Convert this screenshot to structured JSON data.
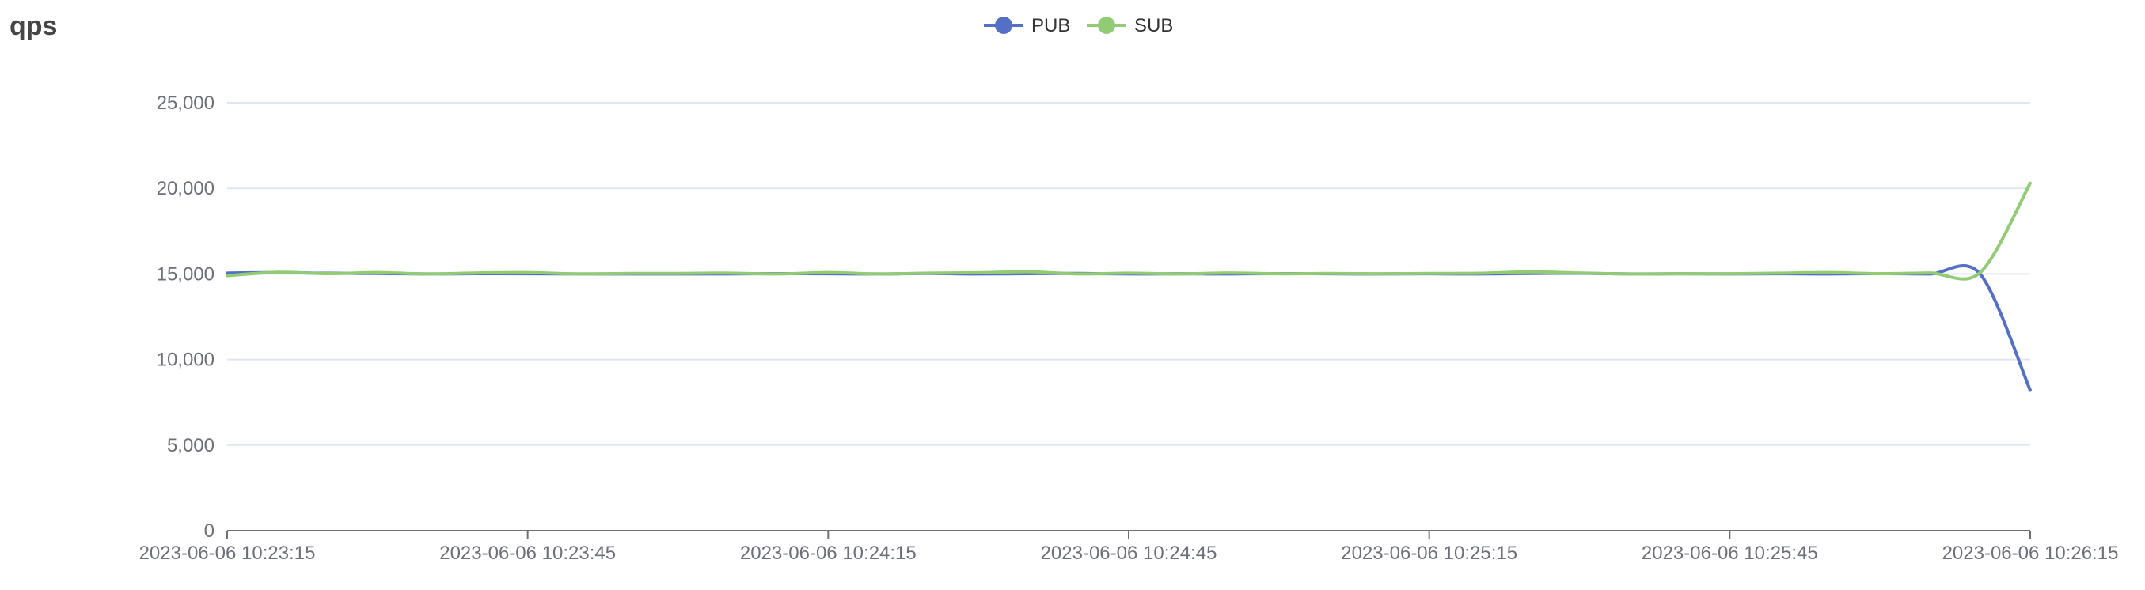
{
  "chart_data": {
    "type": "line",
    "title": "qps",
    "xlabel": "",
    "ylabel": "",
    "ylim": [
      0,
      25000
    ],
    "y_ticks": [
      0,
      5000,
      10000,
      15000,
      20000,
      25000
    ],
    "y_tick_labels": [
      "0",
      "5,000",
      "10,000",
      "15,000",
      "20,000",
      "25,000"
    ],
    "x_range": [
      "2023-06-06 10:23:15",
      "2023-06-06 10:26:15"
    ],
    "x_tick_labels": [
      "2023-06-06 10:23:15",
      "2023-06-06 10:23:45",
      "2023-06-06 10:24:15",
      "2023-06-06 10:24:45",
      "2023-06-06 10:25:15",
      "2023-06-06 10:25:45",
      "2023-06-06 10:26:15"
    ],
    "grid": true,
    "legend_position": "top-center",
    "x": [
      "2023-06-06 10:23:15",
      "2023-06-06 10:23:20",
      "2023-06-06 10:23:25",
      "2023-06-06 10:23:30",
      "2023-06-06 10:23:35",
      "2023-06-06 10:23:40",
      "2023-06-06 10:23:45",
      "2023-06-06 10:23:50",
      "2023-06-06 10:23:55",
      "2023-06-06 10:24:00",
      "2023-06-06 10:24:05",
      "2023-06-06 10:24:10",
      "2023-06-06 10:24:15",
      "2023-06-06 10:24:20",
      "2023-06-06 10:24:25",
      "2023-06-06 10:24:30",
      "2023-06-06 10:24:35",
      "2023-06-06 10:24:40",
      "2023-06-06 10:24:45",
      "2023-06-06 10:24:50",
      "2023-06-06 10:24:55",
      "2023-06-06 10:25:00",
      "2023-06-06 10:25:05",
      "2023-06-06 10:25:10",
      "2023-06-06 10:25:15",
      "2023-06-06 10:25:20",
      "2023-06-06 10:25:25",
      "2023-06-06 10:25:30",
      "2023-06-06 10:25:35",
      "2023-06-06 10:25:40",
      "2023-06-06 10:25:45",
      "2023-06-06 10:25:50",
      "2023-06-06 10:25:55",
      "2023-06-06 10:26:00",
      "2023-06-06 10:26:05",
      "2023-06-06 10:26:10",
      "2023-06-06 10:26:15"
    ],
    "series": [
      {
        "name": "PUB",
        "color": "#5470c6",
        "values": [
          15050,
          15080,
          15040,
          15030,
          15000,
          15020,
          15010,
          15000,
          15000,
          15000,
          15000,
          15020,
          15010,
          15000,
          15030,
          15000,
          15020,
          15030,
          15000,
          15010,
          15000,
          15020,
          15010,
          15000,
          15010,
          15000,
          15030,
          15040,
          15000,
          15010,
          15000,
          15010,
          15000,
          15020,
          15000,
          15000,
          8200
        ]
      },
      {
        "name": "SUB",
        "color": "#91cc75",
        "values": [
          14900,
          15100,
          15020,
          15080,
          15000,
          15060,
          15080,
          15000,
          15030,
          15030,
          15050,
          15000,
          15080,
          15000,
          15050,
          15070,
          15130,
          15000,
          15050,
          15000,
          15060,
          15010,
          15030,
          15010,
          15030,
          15040,
          15120,
          15060,
          15000,
          15010,
          15010,
          15050,
          15080,
          15020,
          15060,
          15080,
          20300
        ]
      }
    ]
  }
}
